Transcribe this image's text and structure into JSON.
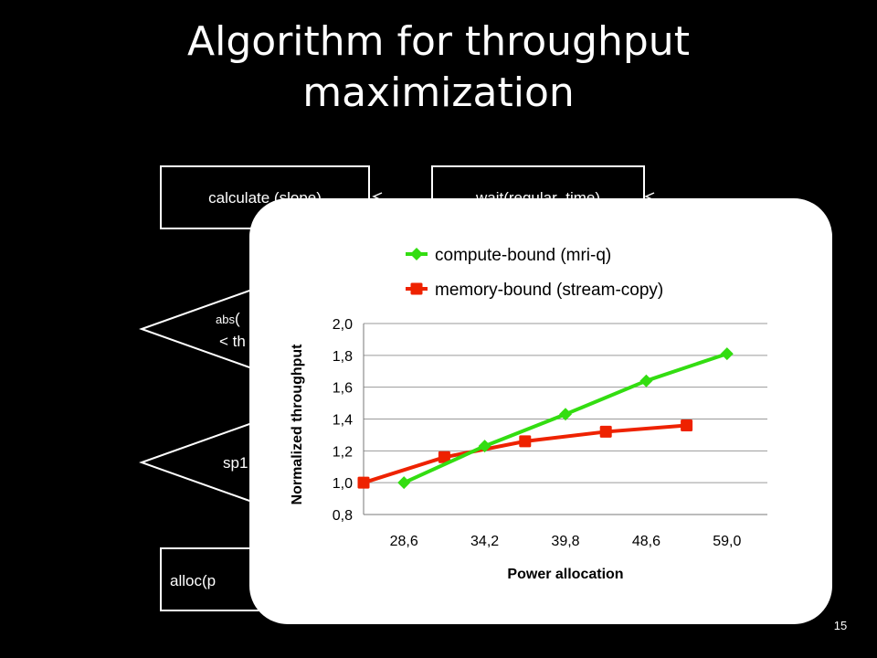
{
  "slide": {
    "title_line1": "Algorithm for throughput",
    "title_line2": "maximization",
    "page_number": "15"
  },
  "flowchart": {
    "box_calculate_slope": "calculate (slope)",
    "box_wait": "wait(regular_time)",
    "diamond1_line1_small": "abs",
    "diamond1_line1_rest": "(",
    "diamond1_line2": "< th",
    "diamond2_label": "sp1",
    "box_alloc": "alloc(p"
  },
  "chart_data": {
    "type": "line",
    "xlabel": "Power allocation",
    "ylabel": "Normalized throughput",
    "categories": [
      "28,6",
      "34,2",
      "39,8",
      "48,6",
      "59,0"
    ],
    "ylim": [
      0.8,
      2.0
    ],
    "yticks": [
      "0,8",
      "1,0",
      "1,2",
      "1,4",
      "1,6",
      "1,8",
      "2,0"
    ],
    "grid": true,
    "legend_position": "top",
    "series": [
      {
        "name": "compute-bound (mri-q)",
        "color": "#33dd11",
        "marker": "diamond",
        "start_index": 0,
        "values": [
          1.0,
          1.23,
          1.43,
          1.64,
          1.81
        ]
      },
      {
        "name": "memory-bound (stream-copy)",
        "color": "#ee2200",
        "marker": "square",
        "start_index": -0.5,
        "values": [
          1.0,
          1.16,
          1.26,
          1.32,
          1.36
        ]
      }
    ]
  }
}
